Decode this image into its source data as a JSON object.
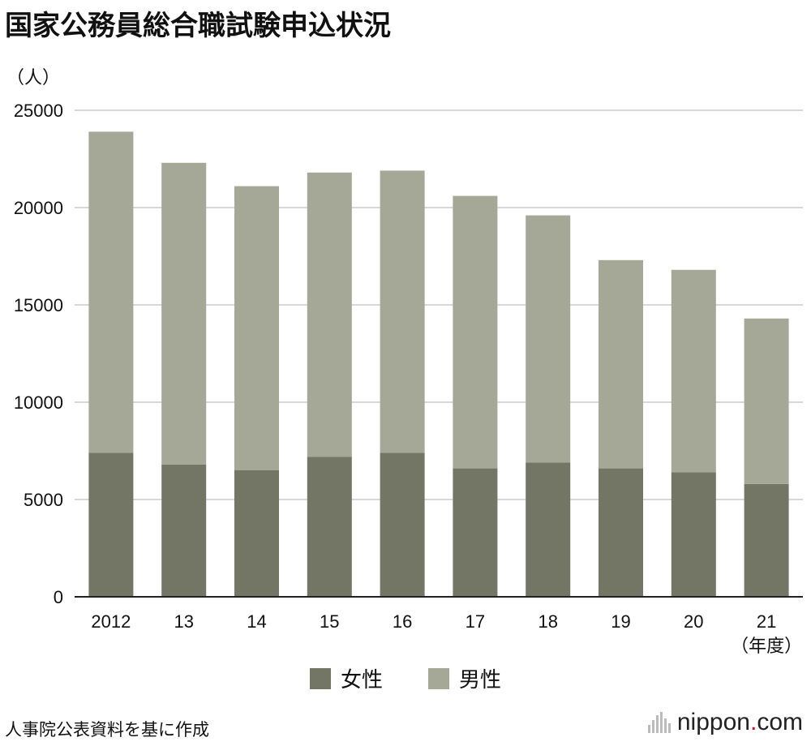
{
  "title": "国家公務員総合職試験申込状況",
  "unit_label": "（人）",
  "x_unit_label": "（年度）",
  "source": "人事院公表資料を基に作成",
  "brand": {
    "name": "nippon",
    "dot": ".",
    "suffix": "com"
  },
  "colors": {
    "female": "#737565",
    "male": "#a5a797",
    "grid": "#cccccc",
    "axis": "#222222"
  },
  "chart_data": {
    "type": "bar",
    "stacked": true,
    "title": "国家公務員総合職試験申込状況",
    "ylabel": "（人）",
    "xlabel": "（年度）",
    "categories": [
      "2012",
      "13",
      "14",
      "15",
      "16",
      "17",
      "18",
      "19",
      "20",
      "21"
    ],
    "ylim": [
      0,
      25000
    ],
    "yticks": [
      "0",
      "5000",
      "10000",
      "15000",
      "20000",
      "25000"
    ],
    "grid": true,
    "legend_position": "bottom",
    "series": [
      {
        "name": "女性",
        "values": [
          7400,
          6800,
          6500,
          7200,
          7400,
          6600,
          6900,
          6600,
          6400,
          5800
        ]
      },
      {
        "name": "男性",
        "values": [
          16500,
          15500,
          14600,
          14600,
          14500,
          14000,
          12700,
          10700,
          10400,
          8500
        ]
      }
    ]
  }
}
